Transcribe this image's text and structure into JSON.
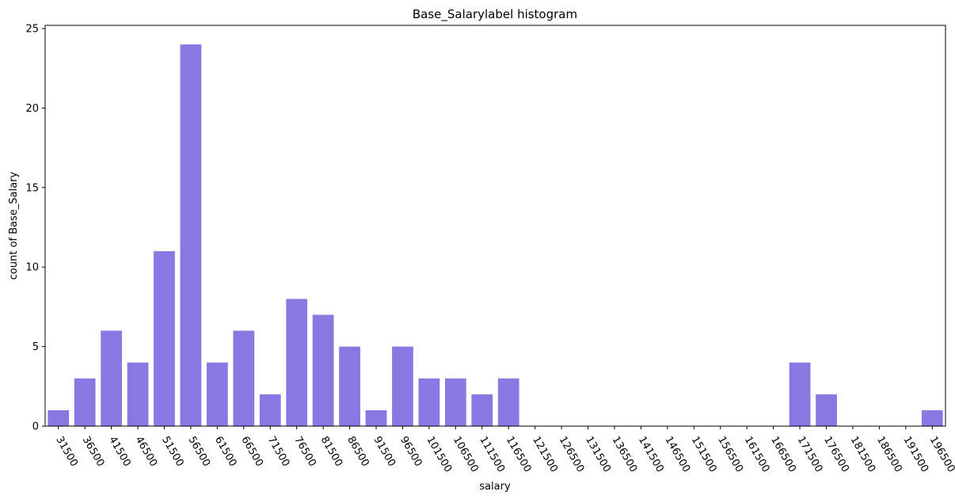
{
  "chart_data": {
    "type": "bar",
    "title": "Base_Salarylabel histogram",
    "xlabel": "salary",
    "ylabel": "count of Base_Salary",
    "categories": [
      "31500",
      "36500",
      "41500",
      "46500",
      "51500",
      "56500",
      "61500",
      "66500",
      "71500",
      "76500",
      "81500",
      "86500",
      "91500",
      "96500",
      "101500",
      "106500",
      "111500",
      "116500",
      "121500",
      "126500",
      "131500",
      "136500",
      "141500",
      "146500",
      "151500",
      "156500",
      "161500",
      "166500",
      "171500",
      "176500",
      "181500",
      "186500",
      "191500",
      "196500"
    ],
    "values": [
      1,
      3,
      6,
      4,
      11,
      24,
      4,
      6,
      2,
      8,
      7,
      5,
      1,
      5,
      3,
      3,
      2,
      3,
      0,
      0,
      0,
      0,
      0,
      0,
      0,
      0,
      0,
      0,
      4,
      2,
      0,
      0,
      0,
      1
    ],
    "ylim": [
      0,
      25.2
    ],
    "yticks": [
      0,
      5,
      10,
      15,
      20,
      25
    ],
    "bar_color": "#8778e2",
    "grid": false,
    "legend": "none"
  }
}
